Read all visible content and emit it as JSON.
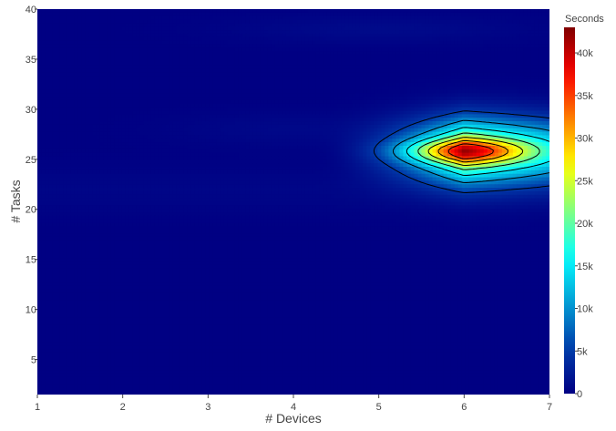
{
  "chart_data": {
    "type": "heatmap",
    "xlabel": "# Devices",
    "ylabel": "# Tasks",
    "xlim": [
      1,
      7
    ],
    "ylim": [
      1.5,
      40
    ],
    "x_ticks": [
      1,
      2,
      3,
      4,
      5,
      6,
      7
    ],
    "x_tick_labels": [
      "1",
      "2",
      "3",
      "4",
      "5",
      "6",
      "7"
    ],
    "y_ticks": [
      5,
      10,
      15,
      20,
      25,
      30,
      35,
      40
    ],
    "y_tick_labels": [
      "5",
      "10",
      "15",
      "20",
      "25",
      "30",
      "35",
      "40"
    ],
    "colorbar": {
      "title": "Seconds",
      "range": [
        0,
        43000
      ],
      "ticks": [
        0,
        5000,
        10000,
        15000,
        20000,
        25000,
        30000,
        35000,
        40000
      ],
      "tick_labels": [
        "0",
        "5k",
        "10k",
        "15k",
        "20k",
        "25k",
        "30k",
        "35k",
        "40k"
      ],
      "colorscale": "jet"
    },
    "peak": {
      "x": 6.0,
      "y": 25.8,
      "value": 42000
    },
    "contour_levels": [
      5000,
      10000,
      15000,
      20000,
      25000,
      30000,
      35000
    ],
    "contour_color": "#000000",
    "grid": false
  }
}
